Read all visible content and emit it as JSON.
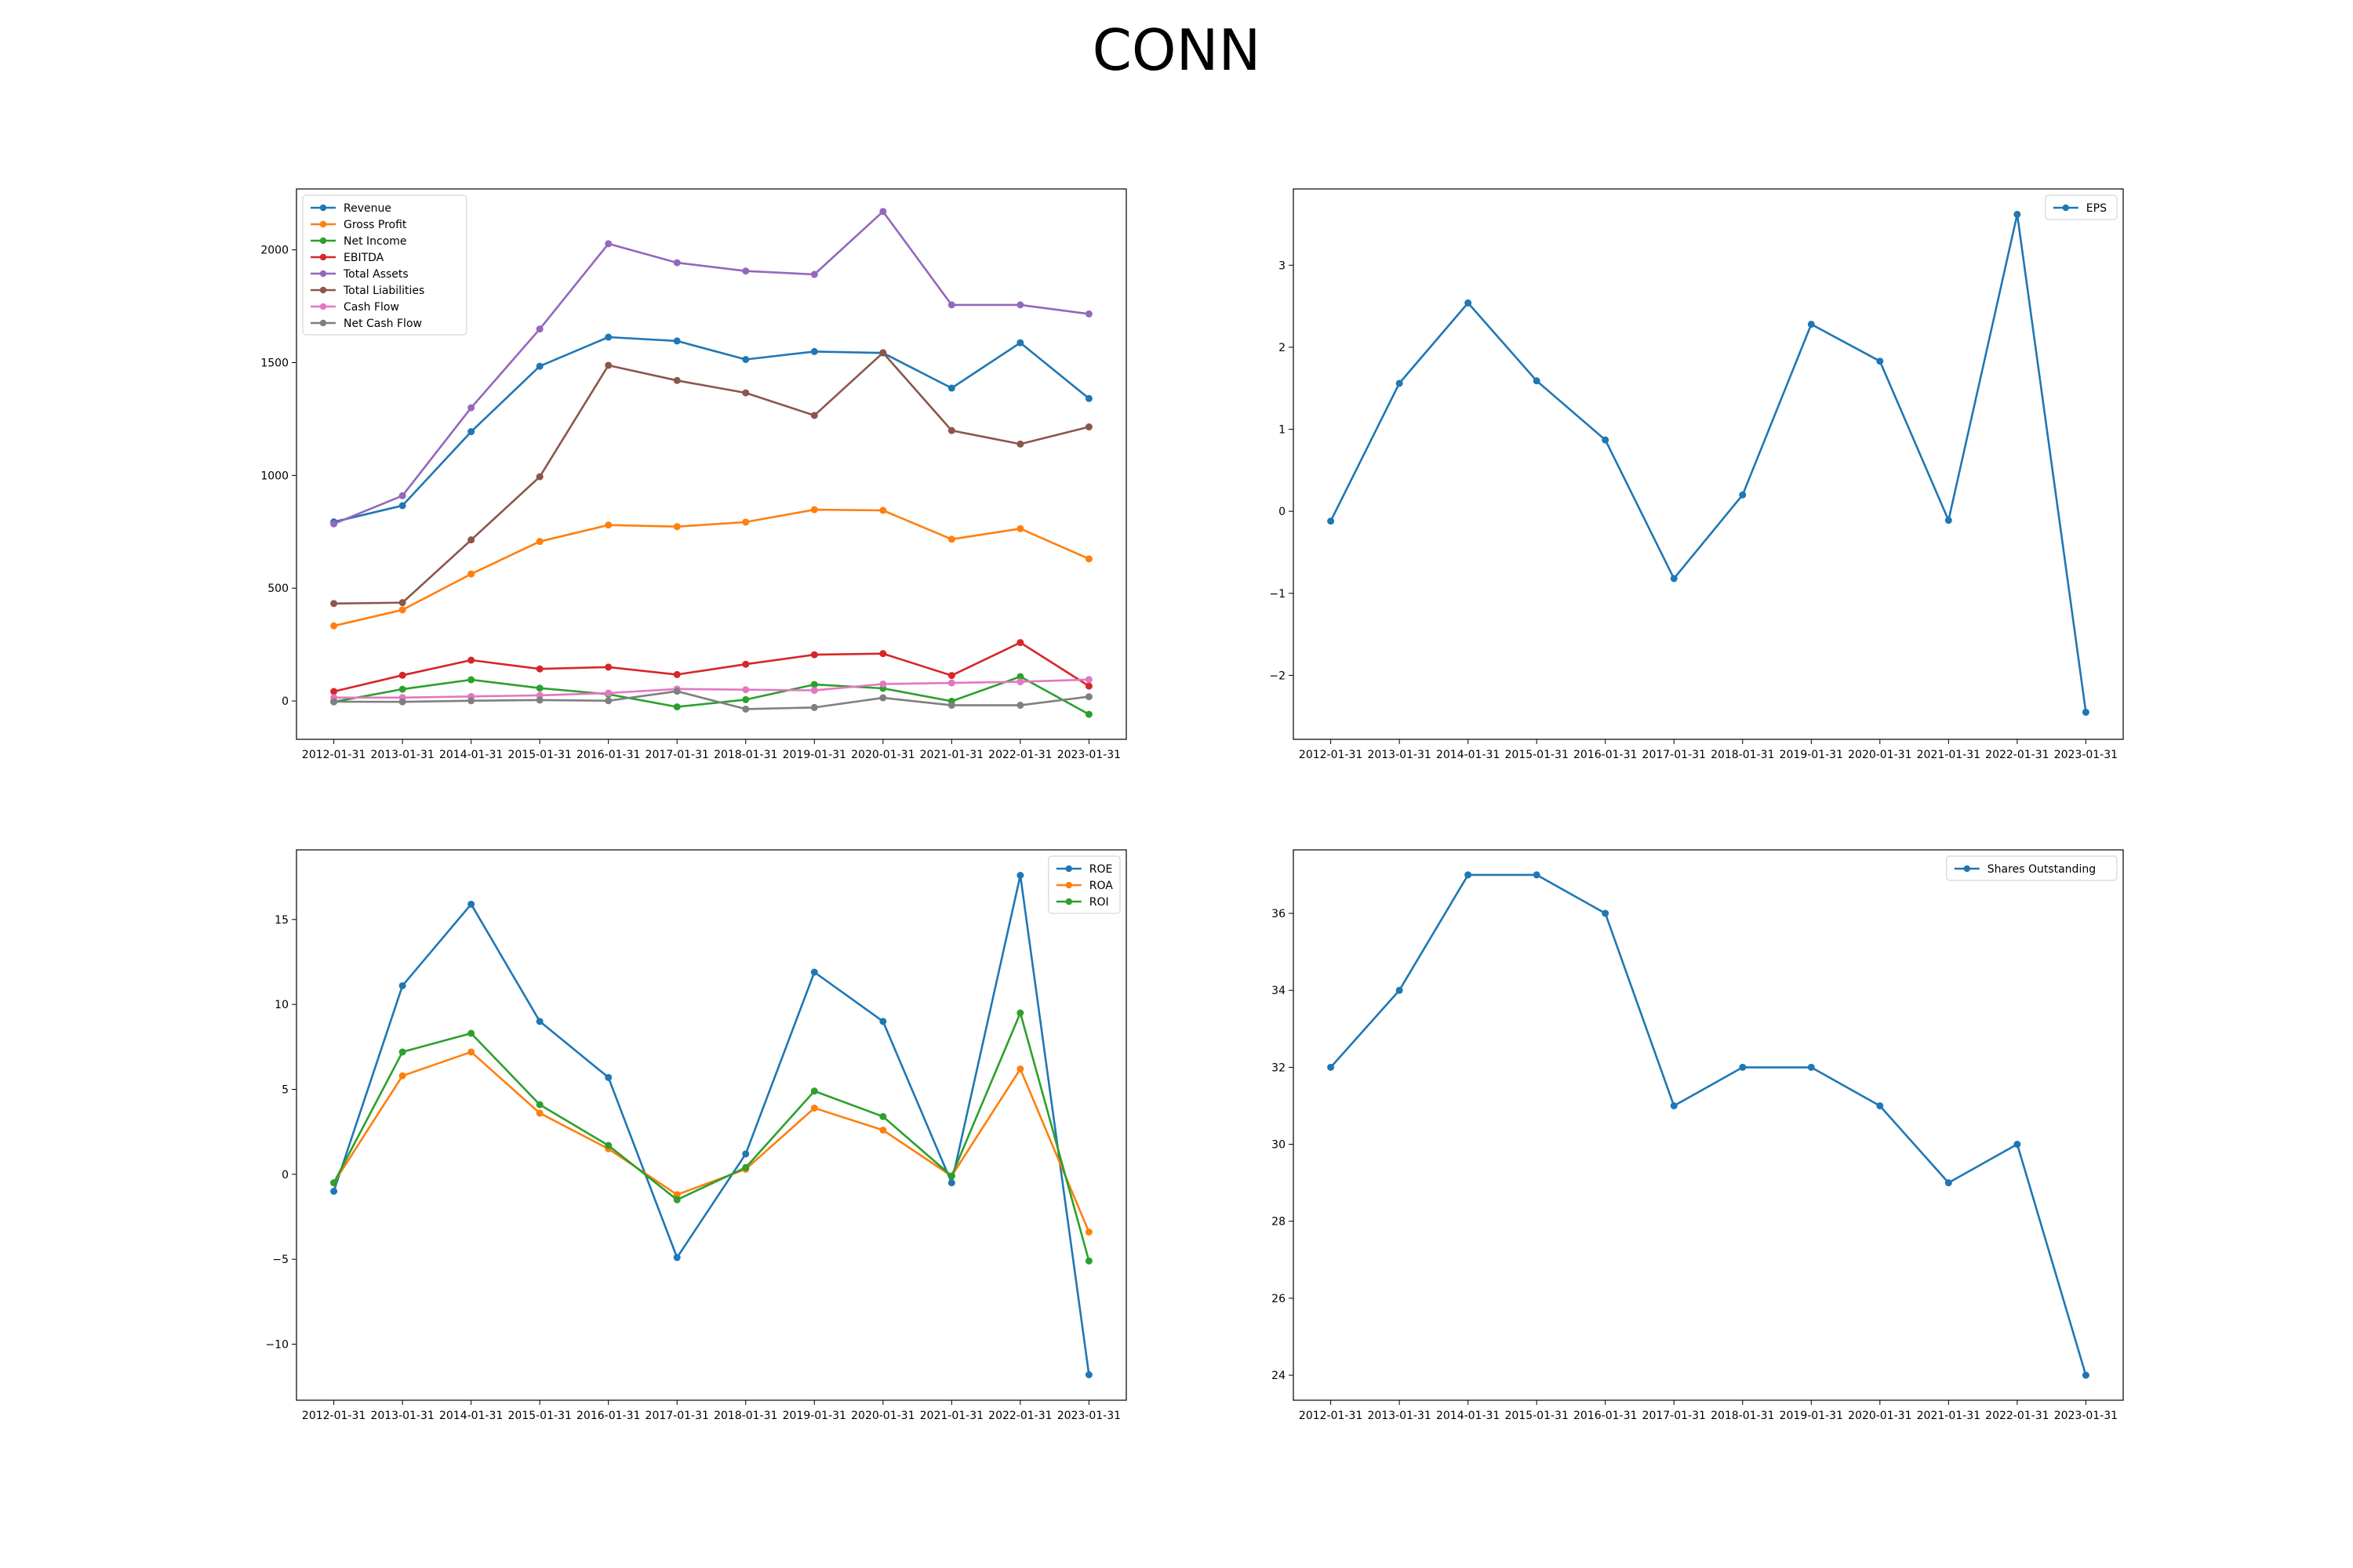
{
  "title": "CONN",
  "chart_data": [
    {
      "type": "line",
      "title": "",
      "xlabel": "",
      "ylabel": "",
      "categories": [
        "2012-01-31",
        "2013-01-31",
        "2014-01-31",
        "2015-01-31",
        "2016-01-31",
        "2017-01-31",
        "2018-01-31",
        "2019-01-31",
        "2020-01-31",
        "2021-01-31",
        "2022-01-31",
        "2023-01-31"
      ],
      "ylim": [
        -170,
        2270
      ],
      "yticks": [
        0,
        500,
        1000,
        1500,
        2000
      ],
      "legend": "top-left",
      "grid": false,
      "series": [
        {
          "name": "Revenue",
          "color": "#1f77b4",
          "values": [
            794,
            866,
            1194,
            1484,
            1613,
            1596,
            1514,
            1549,
            1543,
            1387,
            1588,
            1341
          ]
        },
        {
          "name": "Gross Profit",
          "color": "#ff7f0e",
          "values": [
            333,
            404,
            563,
            707,
            780,
            773,
            793,
            848,
            845,
            717,
            764,
            630
          ]
        },
        {
          "name": "Net Income",
          "color": "#2ca02c",
          "values": [
            -4,
            52,
            94,
            57,
            30,
            -26,
            6,
            73,
            56,
            -1,
            108,
            -59
          ]
        },
        {
          "name": "EBITDA",
          "color": "#d62728",
          "values": [
            42,
            114,
            181,
            142,
            150,
            117,
            163,
            205,
            210,
            113,
            259,
            66
          ]
        },
        {
          "name": "Total Assets",
          "color": "#9467bd",
          "values": [
            785,
            910,
            1300,
            1649,
            2027,
            1943,
            1906,
            1891,
            2170,
            1756,
            1756,
            1716
          ]
        },
        {
          "name": "Total Liabilities",
          "color": "#8c564b",
          "values": [
            432,
            436,
            714,
            994,
            1488,
            1421,
            1366,
            1266,
            1544,
            1199,
            1139,
            1215
          ]
        },
        {
          "name": "Cash Flow",
          "color": "#e377c2",
          "values": [
            15,
            15,
            20,
            25,
            35,
            53,
            50,
            47,
            75,
            80,
            85,
            95
          ]
        },
        {
          "name": "Net Cash Flow",
          "color": "#7f7f7f",
          "values": [
            -3,
            -4,
            1,
            4,
            1,
            43,
            -36,
            -29,
            14,
            -19,
            -19,
            19
          ]
        }
      ]
    },
    {
      "type": "line",
      "title": "",
      "xlabel": "",
      "ylabel": "",
      "categories": [
        "2012-01-31",
        "2013-01-31",
        "2014-01-31",
        "2015-01-31",
        "2016-01-31",
        "2017-01-31",
        "2018-01-31",
        "2019-01-31",
        "2020-01-31",
        "2021-01-31",
        "2022-01-31",
        "2023-01-31"
      ],
      "ylim": [
        -2.78,
        3.93
      ],
      "yticks": [
        -2,
        -1,
        0,
        1,
        2,
        3
      ],
      "legend": "top-right",
      "grid": false,
      "series": [
        {
          "name": "EPS",
          "color": "#1f77b4",
          "values": [
            -0.12,
            1.56,
            2.54,
            1.59,
            0.87,
            -0.82,
            0.2,
            2.28,
            1.83,
            -0.11,
            3.62,
            -2.45
          ]
        }
      ]
    },
    {
      "type": "line",
      "title": "",
      "xlabel": "",
      "ylabel": "",
      "categories": [
        "2012-01-31",
        "2013-01-31",
        "2014-01-31",
        "2015-01-31",
        "2016-01-31",
        "2017-01-31",
        "2018-01-31",
        "2019-01-31",
        "2020-01-31",
        "2021-01-31",
        "2022-01-31",
        "2023-01-31"
      ],
      "ylim": [
        -13.3,
        19.1
      ],
      "yticks": [
        -10,
        -5,
        0,
        5,
        10,
        15
      ],
      "legend": "top-right",
      "grid": false,
      "series": [
        {
          "name": "ROE",
          "color": "#1f77b4",
          "values": [
            -1.0,
            11.1,
            15.9,
            9.0,
            5.7,
            -4.9,
            1.2,
            11.9,
            9.0,
            -0.5,
            17.6,
            -11.8
          ]
        },
        {
          "name": "ROA",
          "color": "#ff7f0e",
          "values": [
            -0.5,
            5.8,
            7.2,
            3.6,
            1.5,
            -1.2,
            0.3,
            3.9,
            2.6,
            -0.1,
            6.2,
            -3.4
          ]
        },
        {
          "name": "ROI",
          "color": "#2ca02c",
          "values": [
            -0.5,
            7.2,
            8.3,
            4.1,
            1.7,
            -1.5,
            0.4,
            4.9,
            3.4,
            -0.1,
            9.5,
            -5.1
          ]
        }
      ]
    },
    {
      "type": "line",
      "title": "",
      "xlabel": "",
      "ylabel": "",
      "categories": [
        "2012-01-31",
        "2013-01-31",
        "2014-01-31",
        "2015-01-31",
        "2016-01-31",
        "2017-01-31",
        "2018-01-31",
        "2019-01-31",
        "2020-01-31",
        "2021-01-31",
        "2022-01-31",
        "2023-01-31"
      ],
      "ylim": [
        23.35,
        37.65
      ],
      "yticks": [
        24,
        26,
        28,
        30,
        32,
        34,
        36
      ],
      "legend": "top-right",
      "grid": false,
      "series": [
        {
          "name": "Shares Outstanding",
          "color": "#1f77b4",
          "values": [
            32,
            34,
            37,
            37,
            36,
            31,
            32,
            32,
            31,
            29,
            30,
            24
          ]
        }
      ]
    }
  ]
}
